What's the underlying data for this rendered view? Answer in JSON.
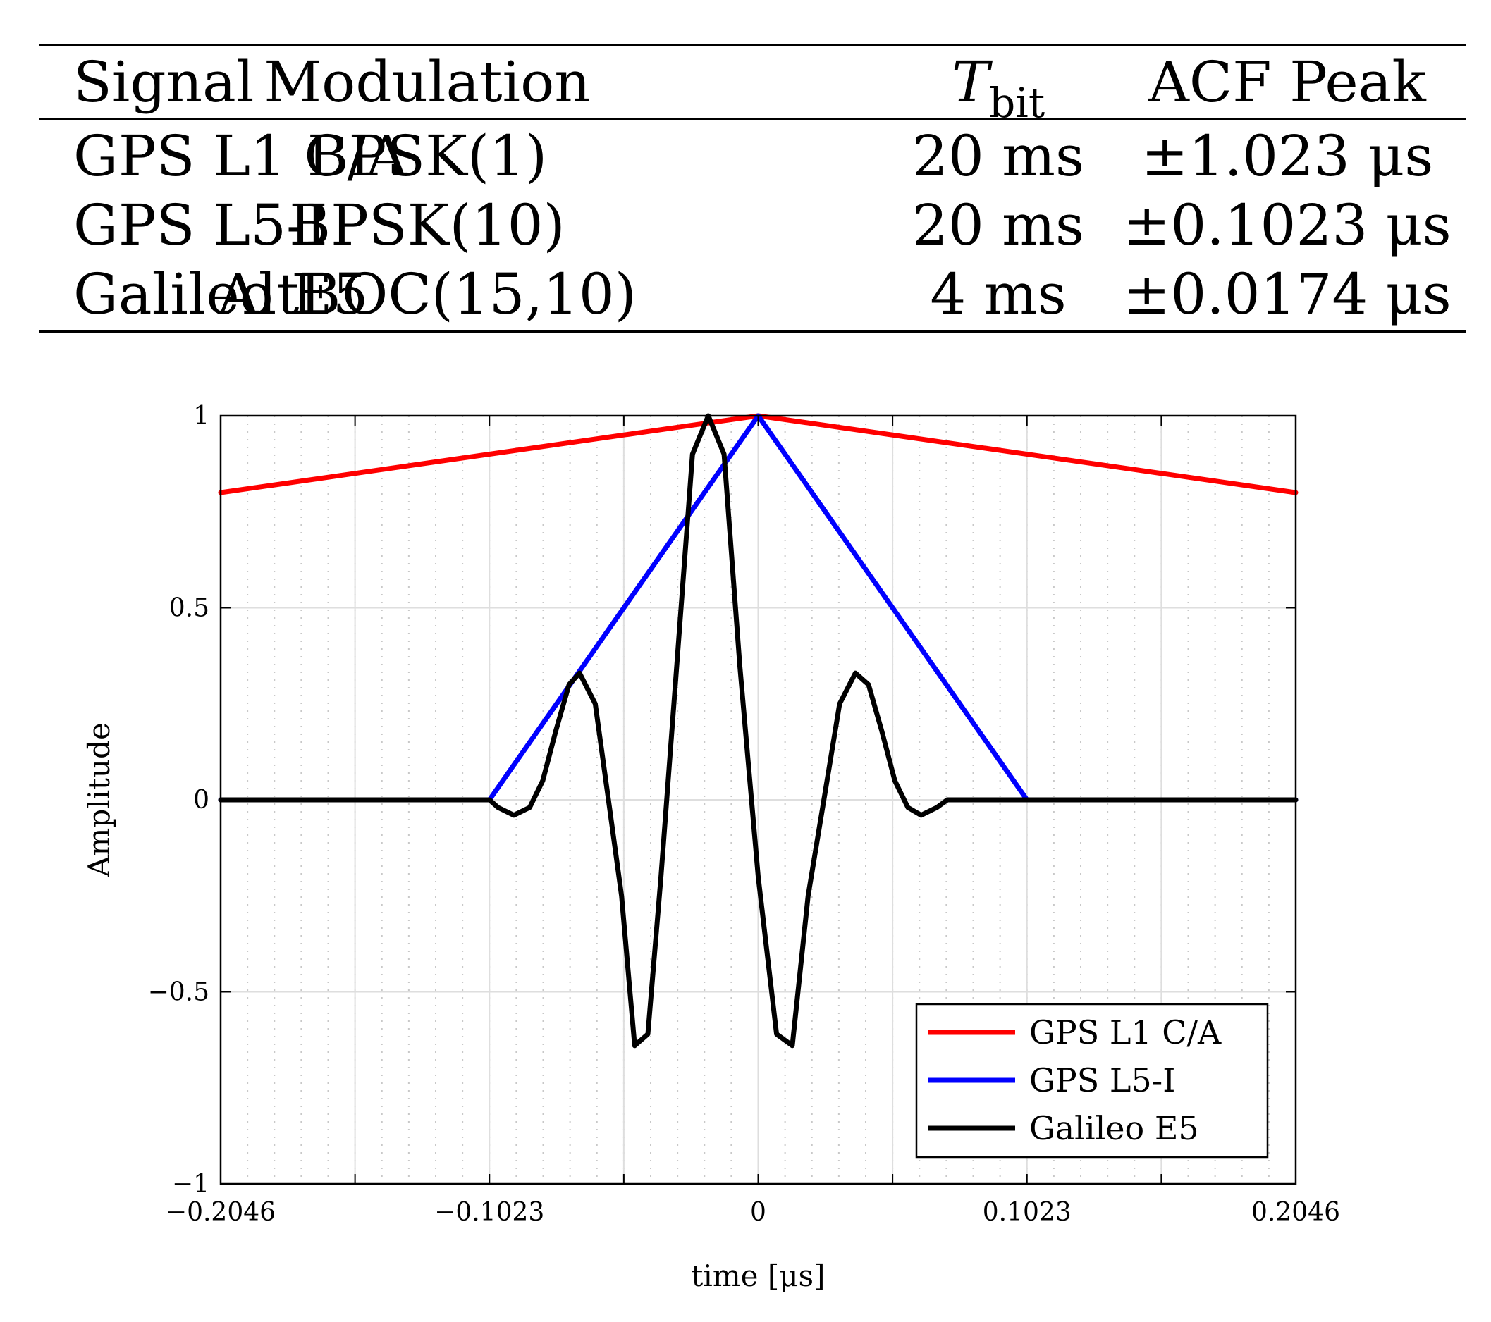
{
  "table": {
    "headers": {
      "signal": "Signal",
      "modulation": "Modulation",
      "tbit_main": "T",
      "tbit_sub": "bit",
      "acf": "ACF Peak"
    },
    "rows": [
      {
        "signal": "GPS L1 C/A",
        "modulation": "BPSK(1)",
        "tbit": "20 ms",
        "acf": "±1.023 μs"
      },
      {
        "signal": "GPS L5-I",
        "modulation": "BPSK(10)",
        "tbit": "20 ms",
        "acf": "±0.1023 μs"
      },
      {
        "signal": "Galileo E5",
        "modulation": "AltBOC(15,10)",
        "tbit": "4 ms",
        "acf": "±0.0174 μs"
      }
    ]
  },
  "chart_data": {
    "type": "line",
    "title": "",
    "xlabel": "time [μs]",
    "ylabel": "Amplitude",
    "xlim": [
      -0.2046,
      0.2046
    ],
    "ylim": [
      -1,
      1
    ],
    "xticks": [
      -0.2046,
      -0.1023,
      0,
      0.1023,
      0.2046
    ],
    "xtick_labels": [
      "−0.2046",
      "−0.1023",
      "0",
      "0.1023",
      "0.2046"
    ],
    "yticks": [
      -1,
      -0.5,
      0,
      0.5,
      1
    ],
    "ytick_labels": [
      "−1",
      "−0.5",
      "0",
      "0.5",
      "1"
    ],
    "grid": true,
    "legend_position": "bottom-right",
    "series": [
      {
        "name": "GPS L1 C/A",
        "color": "#ff0000",
        "x": [
          -0.2046,
          0,
          0.2046
        ],
        "y": [
          0.8,
          1.0,
          0.8
        ]
      },
      {
        "name": "GPS L5-I",
        "color": "#0000ff",
        "x": [
          -0.2046,
          -0.1023,
          0,
          0.1023,
          0.2046
        ],
        "y": [
          0,
          0,
          1.0,
          0,
          0
        ]
      },
      {
        "name": "Galileo E5",
        "color": "#000000",
        "x": [
          -0.2046,
          -0.105,
          -0.1023,
          -0.099,
          -0.093,
          -0.087,
          -0.082,
          -0.077,
          -0.072,
          -0.068,
          -0.062,
          -0.057,
          -0.052,
          -0.047,
          -0.042,
          -0.037,
          -0.031,
          -0.025,
          -0.019,
          -0.013,
          -0.007,
          0,
          0.007,
          0.013,
          0.019,
          0.025,
          0.031,
          0.037,
          0.042,
          0.047,
          0.052,
          0.057,
          0.062,
          0.068,
          0.072,
          0.077,
          0.082,
          0.087,
          0.093,
          0.099,
          0.1023,
          0.105,
          0.2046
        ],
        "y": [
          0,
          0,
          0,
          -0.02,
          -0.04,
          -0.02,
          0.05,
          0.18,
          0.3,
          0.33,
          0.25,
          0.0,
          -0.25,
          -0.64,
          -0.61,
          -0.2,
          0.35,
          0.9,
          1.0,
          0.9,
          0.35,
          -0.2,
          -0.61,
          -0.64,
          -0.25,
          0.0,
          0.25,
          0.33,
          0.3,
          0.18,
          0.05,
          -0.02,
          -0.04,
          -0.02,
          0,
          0,
          0,
          0,
          0,
          0,
          0,
          0,
          0
        ]
      }
    ]
  }
}
